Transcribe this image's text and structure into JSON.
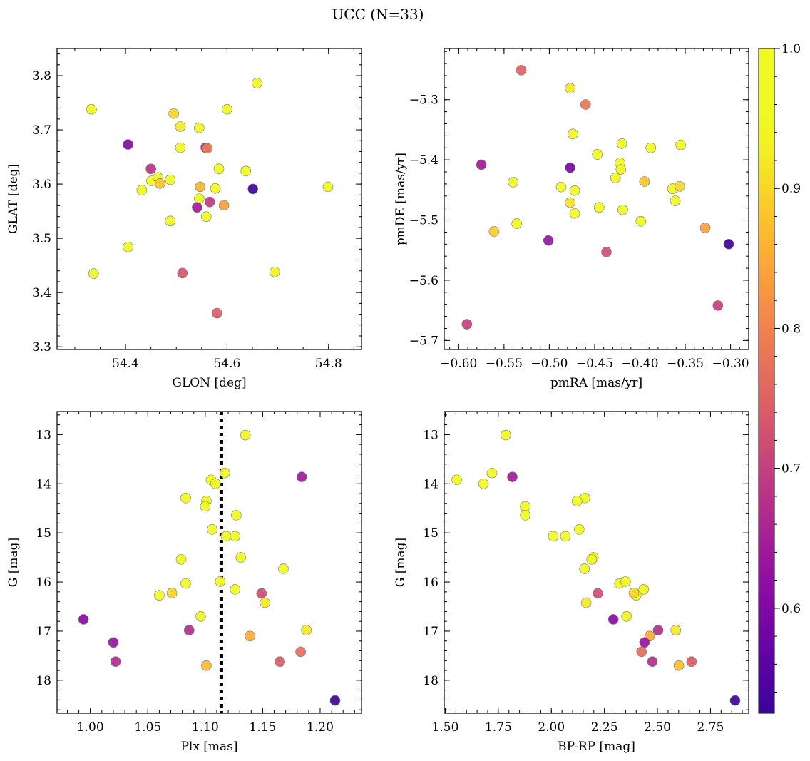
{
  "figure": {
    "title": "UCC (N=33)",
    "colorbar": {
      "min": 0.525,
      "max": 1.0,
      "ticks": [
        0.6,
        0.7,
        0.8,
        0.9,
        1.0
      ],
      "tick_labels": [
        "0.6",
        "0.7",
        "0.8",
        "0.9",
        "1.0"
      ],
      "colormap": "plasma"
    }
  },
  "chart_data": [
    {
      "type": "scatter",
      "xlabel": "GLON [deg]",
      "ylabel": "GLAT [deg]",
      "xlim": [
        54.265,
        54.865
      ],
      "ylim": [
        3.295,
        3.85
      ],
      "y_inverted": false,
      "xticks": [
        54.4,
        54.6,
        54.8
      ],
      "xtick_labels": [
        "54.4",
        "54.6",
        "54.8"
      ],
      "yticks": [
        3.3,
        3.4,
        3.5,
        3.6,
        3.7,
        3.8
      ],
      "ytick_labels": [
        "3.3",
        "3.4",
        "3.5",
        "3.6",
        "3.7",
        "3.8"
      ],
      "x_minor_step": 0.05,
      "y_minor_step": 0.02,
      "points": [
        {
          "x": 54.333,
          "y": 3.738,
          "c": 0.97
        },
        {
          "x": 54.337,
          "y": 3.435,
          "c": 0.96
        },
        {
          "x": 54.405,
          "y": 3.673,
          "c": 0.61
        },
        {
          "x": 54.405,
          "y": 3.484,
          "c": 0.97
        },
        {
          "x": 54.432,
          "y": 3.589,
          "c": 0.95
        },
        {
          "x": 54.45,
          "y": 3.628,
          "c": 0.68
        },
        {
          "x": 54.451,
          "y": 3.606,
          "c": 0.96
        },
        {
          "x": 54.464,
          "y": 3.612,
          "c": 0.96
        },
        {
          "x": 54.468,
          "y": 3.601,
          "c": 0.88
        },
        {
          "x": 54.488,
          "y": 3.532,
          "c": 0.96
        },
        {
          "x": 54.488,
          "y": 3.608,
          "c": 0.96
        },
        {
          "x": 54.495,
          "y": 3.73,
          "c": 0.9
        },
        {
          "x": 54.508,
          "y": 3.706,
          "c": 0.92
        },
        {
          "x": 54.508,
          "y": 3.667,
          "c": 0.96
        },
        {
          "x": 54.512,
          "y": 3.436,
          "c": 0.73
        },
        {
          "x": 54.545,
          "y": 3.704,
          "c": 0.97
        },
        {
          "x": 54.545,
          "y": 3.573,
          "c": 0.96
        },
        {
          "x": 54.547,
          "y": 3.595,
          "c": 0.86
        },
        {
          "x": 54.558,
          "y": 3.667,
          "c": 0.65
        },
        {
          "x": 54.561,
          "y": 3.666,
          "c": 0.79
        },
        {
          "x": 54.559,
          "y": 3.54,
          "c": 0.97
        },
        {
          "x": 54.541,
          "y": 3.557,
          "c": 0.64
        },
        {
          "x": 54.566,
          "y": 3.567,
          "c": 0.69
        },
        {
          "x": 54.577,
          "y": 3.592,
          "c": 0.96
        },
        {
          "x": 54.58,
          "y": 3.362,
          "c": 0.74
        },
        {
          "x": 54.584,
          "y": 3.628,
          "c": 0.97
        },
        {
          "x": 54.594,
          "y": 3.561,
          "c": 0.84
        },
        {
          "x": 54.6,
          "y": 3.738,
          "c": 0.98
        },
        {
          "x": 54.637,
          "y": 3.624,
          "c": 0.96
        },
        {
          "x": 54.651,
          "y": 3.591,
          "c": 0.53
        },
        {
          "x": 54.659,
          "y": 3.786,
          "c": 0.98
        },
        {
          "x": 54.694,
          "y": 3.438,
          "c": 0.93
        },
        {
          "x": 54.799,
          "y": 3.595,
          "c": 0.98
        }
      ]
    },
    {
      "type": "scatter",
      "xlabel": "pmRA [mas/yr]",
      "ylabel": "pmDE [mas/yr]",
      "xlim": [
        -0.616,
        -0.28
      ],
      "ylim": [
        -5.715,
        -5.215
      ],
      "y_inverted": false,
      "xticks": [
        -0.6,
        -0.55,
        -0.5,
        -0.45,
        -0.4,
        -0.35,
        -0.3
      ],
      "xtick_labels": [
        "−0.60",
        "−0.55",
        "−0.50",
        "−0.45",
        "−0.40",
        "−0.35",
        "−0.30"
      ],
      "yticks": [
        -5.7,
        -5.6,
        -5.5,
        -5.4,
        -5.3
      ],
      "ytick_labels": [
        "−5.7",
        "−5.6",
        "−5.5",
        "−5.4",
        "−5.3"
      ],
      "x_minor_step": 0.01,
      "y_minor_step": 0.02,
      "points": [
        {
          "x": -0.531,
          "y": -5.251,
          "c": 0.75
        },
        {
          "x": -0.477,
          "y": -5.281,
          "c": 0.92
        },
        {
          "x": -0.46,
          "y": -5.308,
          "c": 0.78
        },
        {
          "x": -0.474,
          "y": -5.357,
          "c": 0.97
        },
        {
          "x": -0.575,
          "y": -5.408,
          "c": 0.64
        },
        {
          "x": -0.477,
          "y": -5.413,
          "c": 0.59
        },
        {
          "x": -0.447,
          "y": -5.391,
          "c": 0.97
        },
        {
          "x": -0.42,
          "y": -5.373,
          "c": 0.98
        },
        {
          "x": -0.388,
          "y": -5.38,
          "c": 0.97
        },
        {
          "x": -0.355,
          "y": -5.375,
          "c": 0.97
        },
        {
          "x": -0.422,
          "y": -5.405,
          "c": 0.96
        },
        {
          "x": -0.421,
          "y": -5.416,
          "c": 0.97
        },
        {
          "x": -0.427,
          "y": -5.43,
          "c": 0.96
        },
        {
          "x": -0.54,
          "y": -5.437,
          "c": 0.96
        },
        {
          "x": -0.487,
          "y": -5.445,
          "c": 0.97
        },
        {
          "x": -0.472,
          "y": -5.451,
          "c": 0.96
        },
        {
          "x": -0.395,
          "y": -5.436,
          "c": 0.88
        },
        {
          "x": -0.364,
          "y": -5.448,
          "c": 0.96
        },
        {
          "x": -0.356,
          "y": -5.444,
          "c": 0.9
        },
        {
          "x": -0.361,
          "y": -5.468,
          "c": 0.97
        },
        {
          "x": -0.477,
          "y": -5.471,
          "c": 0.91
        },
        {
          "x": -0.445,
          "y": -5.479,
          "c": 0.97
        },
        {
          "x": -0.419,
          "y": -5.483,
          "c": 0.97
        },
        {
          "x": -0.472,
          "y": -5.489,
          "c": 0.97
        },
        {
          "x": -0.399,
          "y": -5.502,
          "c": 0.97
        },
        {
          "x": -0.536,
          "y": -5.506,
          "c": 0.97
        },
        {
          "x": -0.561,
          "y": -5.519,
          "c": 0.89
        },
        {
          "x": -0.328,
          "y": -5.513,
          "c": 0.84
        },
        {
          "x": -0.501,
          "y": -5.534,
          "c": 0.63
        },
        {
          "x": -0.302,
          "y": -5.54,
          "c": 0.53
        },
        {
          "x": -0.437,
          "y": -5.553,
          "c": 0.72
        },
        {
          "x": -0.314,
          "y": -5.642,
          "c": 0.7
        },
        {
          "x": -0.591,
          "y": -5.673,
          "c": 0.7
        }
      ]
    },
    {
      "type": "scatter",
      "xlabel": "Plx [mas]",
      "ylabel": "G [mag]",
      "xlim": [
        0.971,
        1.236
      ],
      "ylim": [
        12.53,
        18.67
      ],
      "y_inverted": true,
      "xticks": [
        1.0,
        1.05,
        1.1,
        1.15,
        1.2
      ],
      "xtick_labels": [
        "1.00",
        "1.05",
        "1.10",
        "1.15",
        "1.20"
      ],
      "yticks": [
        13,
        14,
        15,
        16,
        17,
        18
      ],
      "ytick_labels": [
        "13",
        "14",
        "15",
        "16",
        "17",
        "18"
      ],
      "x_minor_step": 0.01,
      "y_minor_step": 0.2,
      "vline": 1.114,
      "points": [
        {
          "x": 1.135,
          "y": 13.01,
          "c": 0.97
        },
        {
          "x": 1.117,
          "y": 13.78,
          "c": 0.97
        },
        {
          "x": 1.184,
          "y": 13.86,
          "c": 0.64
        },
        {
          "x": 1.105,
          "y": 13.92,
          "c": 0.97
        },
        {
          "x": 1.109,
          "y": 14.0,
          "c": 0.97
        },
        {
          "x": 1.083,
          "y": 14.29,
          "c": 0.96
        },
        {
          "x": 1.101,
          "y": 14.35,
          "c": 0.97
        },
        {
          "x": 1.1,
          "y": 14.46,
          "c": 0.97
        },
        {
          "x": 1.127,
          "y": 14.64,
          "c": 0.97
        },
        {
          "x": 1.106,
          "y": 14.93,
          "c": 0.96
        },
        {
          "x": 1.118,
          "y": 15.07,
          "c": 0.97
        },
        {
          "x": 1.126,
          "y": 15.07,
          "c": 0.96
        },
        {
          "x": 1.131,
          "y": 15.5,
          "c": 0.96
        },
        {
          "x": 1.079,
          "y": 15.54,
          "c": 0.96
        },
        {
          "x": 1.168,
          "y": 15.73,
          "c": 0.98
        },
        {
          "x": 1.083,
          "y": 16.03,
          "c": 0.96
        },
        {
          "x": 1.113,
          "y": 15.99,
          "c": 0.96
        },
        {
          "x": 1.126,
          "y": 16.15,
          "c": 0.96
        },
        {
          "x": 1.149,
          "y": 16.23,
          "c": 0.72
        },
        {
          "x": 1.06,
          "y": 16.27,
          "c": 0.96
        },
        {
          "x": 1.071,
          "y": 16.22,
          "c": 0.9
        },
        {
          "x": 1.152,
          "y": 16.42,
          "c": 0.92
        },
        {
          "x": 0.994,
          "y": 16.76,
          "c": 0.61
        },
        {
          "x": 1.096,
          "y": 16.7,
          "c": 0.93
        },
        {
          "x": 1.086,
          "y": 16.98,
          "c": 0.67
        },
        {
          "x": 1.188,
          "y": 16.98,
          "c": 0.92
        },
        {
          "x": 1.139,
          "y": 17.1,
          "c": 0.85
        },
        {
          "x": 1.02,
          "y": 17.23,
          "c": 0.63
        },
        {
          "x": 1.183,
          "y": 17.42,
          "c": 0.77
        },
        {
          "x": 1.022,
          "y": 17.62,
          "c": 0.67
        },
        {
          "x": 1.165,
          "y": 17.62,
          "c": 0.74
        },
        {
          "x": 1.101,
          "y": 17.7,
          "c": 0.87
        },
        {
          "x": 1.213,
          "y": 18.41,
          "c": 0.53
        }
      ]
    },
    {
      "type": "scatter",
      "xlabel": "BP-RP [mag]",
      "ylabel": "G [mag]",
      "xlim": [
        1.495,
        2.93
      ],
      "ylim": [
        12.53,
        18.67
      ],
      "y_inverted": true,
      "xticks": [
        1.5,
        1.75,
        2.0,
        2.25,
        2.5,
        2.75
      ],
      "xtick_labels": [
        "1.50",
        "1.75",
        "2.00",
        "2.25",
        "2.50",
        "2.75"
      ],
      "yticks": [
        13,
        14,
        15,
        16,
        17,
        18
      ],
      "ytick_labels": [
        "13",
        "14",
        "15",
        "16",
        "17",
        "18"
      ],
      "x_minor_step": 0.05,
      "y_minor_step": 0.2,
      "points": [
        {
          "x": 1.785,
          "y": 13.01,
          "c": 0.97
        },
        {
          "x": 1.554,
          "y": 13.92,
          "c": 0.97
        },
        {
          "x": 1.72,
          "y": 13.78,
          "c": 0.97
        },
        {
          "x": 1.68,
          "y": 14.0,
          "c": 0.97
        },
        {
          "x": 1.816,
          "y": 13.86,
          "c": 0.64
        },
        {
          "x": 2.158,
          "y": 14.29,
          "c": 0.96
        },
        {
          "x": 2.121,
          "y": 14.35,
          "c": 0.97
        },
        {
          "x": 1.877,
          "y": 14.46,
          "c": 0.97
        },
        {
          "x": 1.877,
          "y": 14.64,
          "c": 0.97
        },
        {
          "x": 2.131,
          "y": 14.93,
          "c": 0.96
        },
        {
          "x": 2.009,
          "y": 15.07,
          "c": 0.97
        },
        {
          "x": 2.066,
          "y": 15.07,
          "c": 0.96
        },
        {
          "x": 2.198,
          "y": 15.5,
          "c": 0.96
        },
        {
          "x": 2.19,
          "y": 15.54,
          "c": 0.96
        },
        {
          "x": 2.156,
          "y": 15.73,
          "c": 0.98
        },
        {
          "x": 2.321,
          "y": 16.03,
          "c": 0.96
        },
        {
          "x": 2.35,
          "y": 15.99,
          "c": 0.96
        },
        {
          "x": 2.435,
          "y": 16.15,
          "c": 0.96
        },
        {
          "x": 2.219,
          "y": 16.23,
          "c": 0.72
        },
        {
          "x": 2.4,
          "y": 16.27,
          "c": 0.96
        },
        {
          "x": 2.389,
          "y": 16.22,
          "c": 0.9
        },
        {
          "x": 2.164,
          "y": 16.42,
          "c": 0.92
        },
        {
          "x": 2.292,
          "y": 16.76,
          "c": 0.61
        },
        {
          "x": 2.354,
          "y": 16.7,
          "c": 0.93
        },
        {
          "x": 2.503,
          "y": 16.98,
          "c": 0.67
        },
        {
          "x": 2.586,
          "y": 16.98,
          "c": 0.92
        },
        {
          "x": 2.463,
          "y": 17.1,
          "c": 0.85
        },
        {
          "x": 2.439,
          "y": 17.23,
          "c": 0.63
        },
        {
          "x": 2.425,
          "y": 17.42,
          "c": 0.77
        },
        {
          "x": 2.476,
          "y": 17.62,
          "c": 0.67
        },
        {
          "x": 2.661,
          "y": 17.62,
          "c": 0.74
        },
        {
          "x": 2.601,
          "y": 17.7,
          "c": 0.87
        },
        {
          "x": 2.866,
          "y": 18.41,
          "c": 0.53
        }
      ]
    }
  ]
}
